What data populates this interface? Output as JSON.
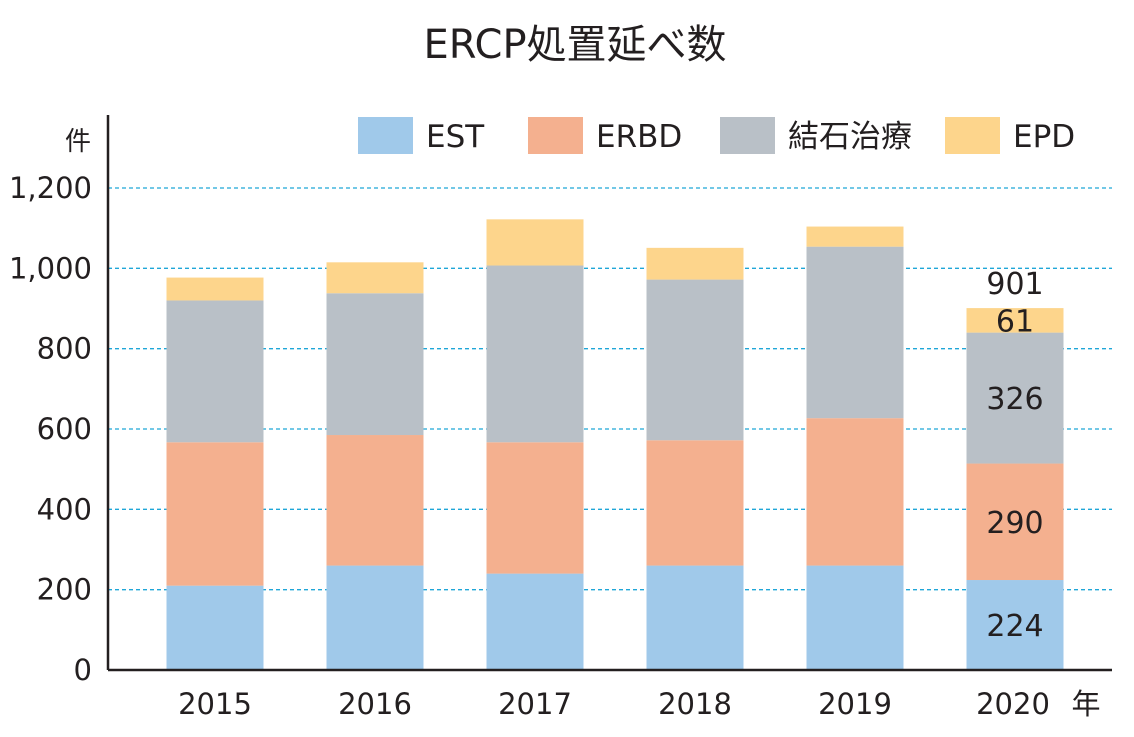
{
  "chart_data": {
    "type": "bar",
    "stacked": true,
    "title": "ERCP処置延べ数",
    "y_unit": "件",
    "x_unit": "年",
    "categories": [
      "2015",
      "2016",
      "2017",
      "2018",
      "2019",
      "2020"
    ],
    "ylim": [
      0,
      1200
    ],
    "yticks": [
      "0",
      "200",
      "400",
      "600",
      "800",
      "1,000",
      "1,200"
    ],
    "grid": true,
    "legend_position": "top-right",
    "series": [
      {
        "name": "EST",
        "color": "#a0c9ea",
        "values": [
          210,
          260,
          240,
          260,
          260,
          224
        ]
      },
      {
        "name": "ERBD",
        "color": "#f4b08f",
        "values": [
          357,
          325,
          327,
          312,
          367,
          290
        ]
      },
      {
        "name": "結石治療",
        "color": "#b9c0c7",
        "values": [
          353,
          353,
          440,
          400,
          427,
          326
        ]
      },
      {
        "name": "EPD",
        "color": "#fdd58c",
        "values": [
          57,
          77,
          115,
          79,
          50,
          61
        ]
      }
    ],
    "data_labels": [
      {
        "category": "2020",
        "series": "EST",
        "text": "224"
      },
      {
        "category": "2020",
        "series": "ERBD",
        "text": "290"
      },
      {
        "category": "2020",
        "series": "結石治療",
        "text": "326"
      },
      {
        "category": "2020",
        "series": "EPD",
        "text": "61"
      },
      {
        "category": "2020",
        "series": "total",
        "text": "901"
      }
    ]
  }
}
